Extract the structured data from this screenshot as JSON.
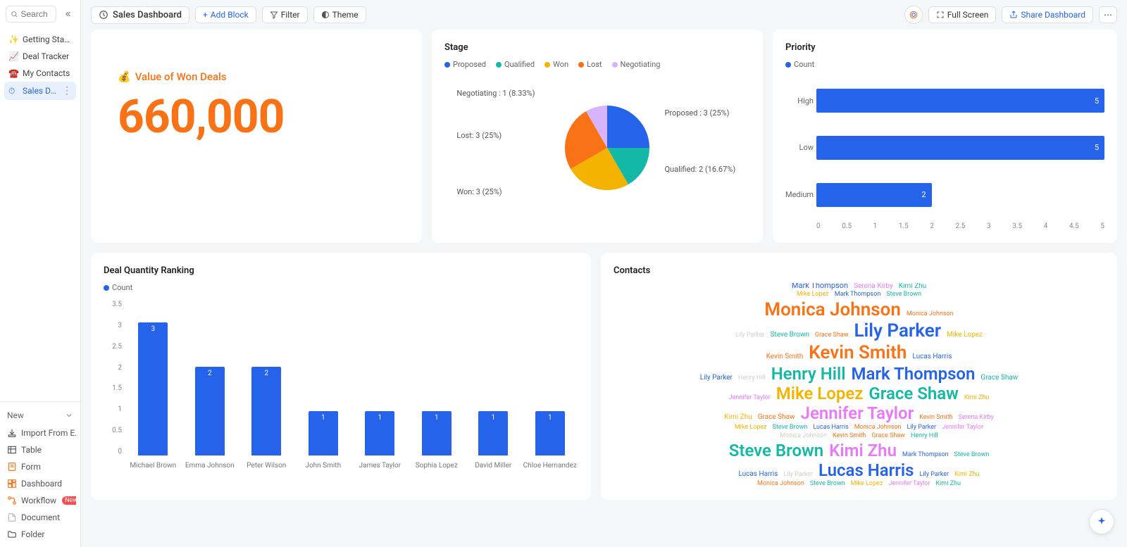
{
  "sidebar": {
    "search_placeholder": "Search",
    "items": [
      {
        "icon": "✨",
        "label": "Getting Started"
      },
      {
        "icon": "📈",
        "label": "Deal Tracker"
      },
      {
        "icon": "☎️",
        "label": "My Contacts"
      },
      {
        "icon": "⏱",
        "label": "Sales Dashbo...",
        "active": true
      }
    ],
    "new_label": "New",
    "tools": [
      {
        "icon": "import",
        "label": "Import From E...",
        "color": "#555"
      },
      {
        "icon": "table",
        "label": "Table",
        "color": "#555"
      },
      {
        "icon": "form",
        "label": "Form",
        "color": "#f97316"
      },
      {
        "icon": "dash",
        "label": "Dashboard",
        "color": "#f97316"
      },
      {
        "icon": "flow",
        "label": "Workflow",
        "color": "#f97316",
        "badge": "New"
      },
      {
        "icon": "doc",
        "label": "Document",
        "color": "#bbb",
        "disabled": true
      },
      {
        "icon": "folder",
        "label": "Folder",
        "color": "#555"
      }
    ]
  },
  "topbar": {
    "title": "Sales Dashboard",
    "add_block": "Add Block",
    "filter": "Filter",
    "theme": "Theme",
    "fullscreen": "Full Screen",
    "share": "Share Dashboard"
  },
  "kpi": {
    "emoji": "💰",
    "label": "Value of Won Deals",
    "value": "660,000",
    "color": "#f97316"
  },
  "stage": {
    "title": "Stage",
    "legend": [
      {
        "label": "Proposed",
        "color": "#2563eb"
      },
      {
        "label": "Qualified",
        "color": "#14b8a6"
      },
      {
        "label": "Won",
        "color": "#f5b301"
      },
      {
        "label": "Lost",
        "color": "#f97316"
      },
      {
        "label": "Negotiating",
        "color": "#d8b4fe"
      }
    ],
    "slices": [
      {
        "label": "Proposed : 3 (25%)",
        "value": 25.0,
        "color": "#2563eb"
      },
      {
        "label": "Qualified: 2 (16.67%)",
        "value": 16.67,
        "color": "#14b8a6"
      },
      {
        "label": "Won: 3 (25%)",
        "value": 25.0,
        "color": "#f5b301"
      },
      {
        "label": "Lost: 3 (25%)",
        "value": 25.0,
        "color": "#f97316"
      },
      {
        "label": "Negotiating : 1 (8.33%)",
        "value": 8.33,
        "color": "#d8b4fe"
      }
    ]
  },
  "priority": {
    "title": "Priority",
    "legend_label": "Count",
    "legend_color": "#2563eb",
    "bars": [
      {
        "cat": "High",
        "value": 5
      },
      {
        "cat": "Low",
        "value": 5
      },
      {
        "cat": "Medium",
        "value": 2
      }
    ],
    "xmax": 5,
    "xticks": [
      "0",
      "0.5",
      "1",
      "1.5",
      "2",
      "2.5",
      "3",
      "3.5",
      "4",
      "4.5",
      "5"
    ],
    "bar_color": "#2563eb"
  },
  "ranking": {
    "title": "Deal Quantity Ranking",
    "legend_label": "Count",
    "legend_color": "#2563eb",
    "ymax": 3.5,
    "yticks": [
      "3.5",
      "3",
      "2.5",
      "2",
      "1.5",
      "1",
      "0.5",
      "0"
    ],
    "bars": [
      {
        "cat": "Michael Brown",
        "value": 3
      },
      {
        "cat": "Emma Johnson",
        "value": 2
      },
      {
        "cat": "Peter Wilson",
        "value": 2
      },
      {
        "cat": "John Smith",
        "value": 1
      },
      {
        "cat": "James Taylor",
        "value": 1
      },
      {
        "cat": "Sophia Lopez",
        "value": 1
      },
      {
        "cat": "David Miller",
        "value": 1
      },
      {
        "cat": "Chloe Hernandez",
        "value": 1
      }
    ],
    "bar_color": "#2563eb"
  },
  "contacts": {
    "title": "Contacts",
    "palette": {
      "orange": "#f97316",
      "blue": "#2563eb",
      "teal": "#14b8a6",
      "gold": "#f5b301",
      "pink": "#e879f9",
      "grey": "#cfcfcf"
    },
    "lines": [
      [
        {
          "t": "Steve Brown",
          "c": "teal",
          "s": 11
        },
        {
          "t": "Mike Lopez",
          "c": "gold",
          "s": 10
        },
        {
          "t": "Lily Parker",
          "c": "blue",
          "s": 10
        }
      ],
      [
        {
          "t": "Henry Hill",
          "c": "teal",
          "s": 10
        },
        {
          "t": "Grace Shaw",
          "c": "orange",
          "s": 10
        }
      ],
      [
        {
          "t": "Monica Johnson",
          "c": "orange",
          "s": 11
        },
        {
          "t": "Lucas Harris",
          "c": "blue",
          "s": 11
        }
      ],
      [
        {
          "t": "Jennifer Taylor",
          "c": "pink",
          "s": 10
        },
        {
          "t": "Kimi Zhu",
          "c": "gold",
          "s": 10
        },
        {
          "t": "Kevin Smith",
          "c": "orange",
          "s": 11
        }
      ],
      [
        {
          "t": "Mark Thompson",
          "c": "blue",
          "s": 11
        },
        {
          "t": "Serena Kirby",
          "c": "pink",
          "s": 10
        },
        {
          "t": "Kimi Zhu",
          "c": "teal",
          "s": 10
        }
      ],
      [
        {
          "t": "Mike Lopez",
          "c": "gold",
          "s": 9
        },
        {
          "t": "Mark Thompson",
          "c": "blue",
          "s": 9
        },
        {
          "t": "Steve Brown",
          "c": "teal",
          "s": 9
        }
      ],
      [
        {
          "t": "Monica Johnson",
          "c": "orange",
          "s": 26
        },
        {
          "t": "Monica Johnson",
          "c": "orange",
          "s": 9
        }
      ],
      [
        {
          "t": "Lily Parker",
          "c": "grey",
          "s": 9
        },
        {
          "t": "Steve Brown",
          "c": "teal",
          "s": 10
        },
        {
          "t": "Grace Shaw",
          "c": "orange",
          "s": 9
        },
        {
          "t": "Lily Parker",
          "c": "blue",
          "s": 26
        },
        {
          "t": "Mike Lopez",
          "c": "gold",
          "s": 10
        }
      ],
      [
        {
          "t": "Kevin Smith",
          "c": "orange",
          "s": 10
        },
        {
          "t": "Kevin Smith",
          "c": "orange",
          "s": 26
        },
        {
          "t": "Lucas Harris",
          "c": "blue",
          "s": 10
        }
      ],
      [
        {
          "t": "Lily Parker",
          "c": "blue",
          "s": 10
        },
        {
          "t": "Henry Hill",
          "c": "grey",
          "s": 9
        },
        {
          "t": "Henry Hill",
          "c": "teal",
          "s": 24
        },
        {
          "t": "Mark Thompson",
          "c": "blue",
          "s": 24
        },
        {
          "t": "Grace Shaw",
          "c": "teal",
          "s": 10
        }
      ],
      [
        {
          "t": "Jennifer Taylor",
          "c": "pink",
          "s": 9
        },
        {
          "t": "Mike Lopez",
          "c": "gold",
          "s": 24
        },
        {
          "t": "Grace Shaw",
          "c": "teal",
          "s": 24
        },
        {
          "t": "Kimi Zhu",
          "c": "gold",
          "s": 9
        }
      ],
      [
        {
          "t": "Kimi Zhu",
          "c": "gold",
          "s": 10
        },
        {
          "t": "Grace Shaw",
          "c": "orange",
          "s": 10
        },
        {
          "t": "Jennifer Taylor",
          "c": "pink",
          "s": 24
        },
        {
          "t": "Kevin Smith",
          "c": "orange",
          "s": 9
        },
        {
          "t": "Serena Kirby",
          "c": "pink",
          "s": 9
        }
      ],
      [
        {
          "t": "Mike Lopez",
          "c": "gold",
          "s": 9
        },
        {
          "t": "Steve Brown",
          "c": "teal",
          "s": 9
        },
        {
          "t": "Lucas Harris",
          "c": "blue",
          "s": 9
        },
        {
          "t": "Monica Johnson",
          "c": "orange",
          "s": 9
        },
        {
          "t": "Lily Parker",
          "c": "blue",
          "s": 9
        },
        {
          "t": "Jennifer Taylor",
          "c": "pink",
          "s": 9
        }
      ],
      [
        {
          "t": "Monica Johnson",
          "c": "grey",
          "s": 9
        },
        {
          "t": "Kevin Smith",
          "c": "orange",
          "s": 9
        },
        {
          "t": "Grace Shaw",
          "c": "orange",
          "s": 9
        },
        {
          "t": "Henry Hill",
          "c": "teal",
          "s": 9
        }
      ],
      [
        {
          "t": "Steve Brown",
          "c": "teal",
          "s": 24
        },
        {
          "t": "Kimi Zhu",
          "c": "pink",
          "s": 24
        },
        {
          "t": "Mark Thompson",
          "c": "blue",
          "s": 9
        },
        {
          "t": "Steve Brown",
          "c": "teal",
          "s": 9
        }
      ],
      [
        {
          "t": "Lucas Harris",
          "c": "blue",
          "s": 10
        },
        {
          "t": "Lily Parker",
          "c": "grey",
          "s": 9
        },
        {
          "t": "Lucas Harris",
          "c": "blue",
          "s": 24
        },
        {
          "t": "Lily Parker",
          "c": "blue",
          "s": 9
        },
        {
          "t": "Kimi Zhu",
          "c": "gold",
          "s": 9
        }
      ],
      [
        {
          "t": "Monica Johnson",
          "c": "orange",
          "s": 9
        },
        {
          "t": "Steve Brown",
          "c": "teal",
          "s": 9
        },
        {
          "t": "Mike Lopez",
          "c": "gold",
          "s": 9
        },
        {
          "t": "Jennifer Taylor",
          "c": "pink",
          "s": 9
        },
        {
          "t": "Kimi Zhu",
          "c": "teal",
          "s": 9
        }
      ],
      [
        {
          "t": "Lucas Harris",
          "c": "blue",
          "s": 9
        },
        {
          "t": "Serena Kirby",
          "c": "pink",
          "s": 24
        },
        {
          "t": "Mark Thompson",
          "c": "blue",
          "s": 9
        },
        {
          "t": "Monica Johnson",
          "c": "orange",
          "s": 9
        }
      ],
      [
        {
          "t": "Serena Kirby",
          "c": "pink",
          "s": 9
        },
        {
          "t": "Lily Parker",
          "c": "blue",
          "s": 9
        },
        {
          "t": "Mark Thompson",
          "c": "blue",
          "s": 9
        },
        {
          "t": "Henry Hill",
          "c": "teal",
          "s": 9
        },
        {
          "t": "Lucas Harris",
          "c": "blue",
          "s": 9
        },
        {
          "t": "Kimi Zhu",
          "c": "gold",
          "s": 10
        }
      ],
      [
        {
          "t": "Jennifer Taylor",
          "c": "pink",
          "s": 9
        },
        {
          "t": "Kevin Smith",
          "c": "orange",
          "s": 10
        },
        {
          "t": "Grace Shaw",
          "c": "teal",
          "s": 10
        },
        {
          "t": "Lucas Harris",
          "c": "grey",
          "s": 9
        }
      ]
    ]
  }
}
